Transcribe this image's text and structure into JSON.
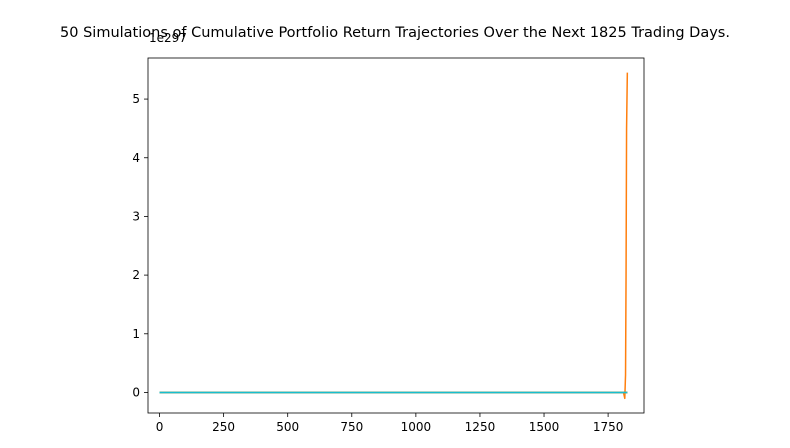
{
  "chart_data": {
    "type": "line",
    "title": "50 Simulations of Cumulative Portfolio Return Trajectories Over the Next 1825 Trading Days.",
    "xlabel": "",
    "ylabel": "",
    "y_offset_label": "1e297",
    "xlim": [
      -45,
      1890
    ],
    "ylim": [
      -0.35,
      5.7
    ],
    "xticks": [
      0,
      250,
      500,
      750,
      1000,
      1250,
      1500,
      1750
    ],
    "xtick_labels": [
      "0",
      "250",
      "500",
      "750",
      "1000",
      "1250",
      "1500",
      "1750"
    ],
    "yticks": [
      0,
      1,
      2,
      3,
      4,
      5
    ],
    "ytick_labels": [
      "0",
      "1",
      "2",
      "3",
      "4",
      "5"
    ],
    "grid": false,
    "legend": "none",
    "series": [
      {
        "color": "#ff7f0e",
        "x": [
          0,
          1790,
          1810,
          1815,
          1818,
          1820,
          1822,
          1825
        ],
        "y": [
          0,
          0,
          0,
          -0.1,
          0.3,
          2.0,
          4.5,
          5.45
        ]
      },
      {
        "color": "#1f77b4",
        "x": [
          0,
          1825
        ],
        "y": [
          0,
          0
        ]
      },
      {
        "color": "#2ca02c",
        "x": [
          0,
          1825
        ],
        "y": [
          0,
          0
        ]
      },
      {
        "color": "#d62728",
        "x": [
          0,
          1825
        ],
        "y": [
          0,
          0
        ]
      },
      {
        "color": "#9467bd",
        "x": [
          0,
          1825
        ],
        "y": [
          0,
          0
        ]
      },
      {
        "color": "#8c564b",
        "x": [
          0,
          1825
        ],
        "y": [
          0,
          0
        ]
      },
      {
        "color": "#e377c2",
        "x": [
          0,
          1825
        ],
        "y": [
          0,
          0
        ]
      },
      {
        "color": "#7f7f7f",
        "x": [
          0,
          1825
        ],
        "y": [
          0,
          0
        ]
      },
      {
        "color": "#bcbd22",
        "x": [
          0,
          1825
        ],
        "y": [
          0,
          0
        ]
      },
      {
        "color": "#17becf",
        "x": [
          0,
          1825
        ],
        "y": [
          0,
          0
        ]
      }
    ]
  }
}
